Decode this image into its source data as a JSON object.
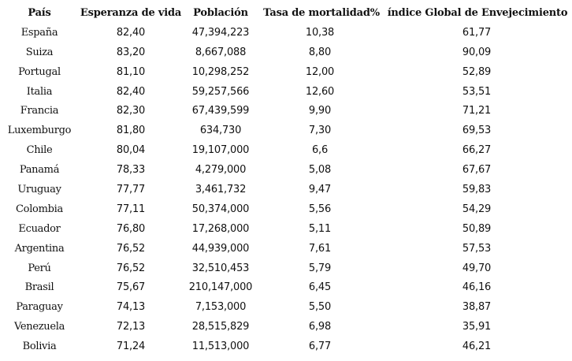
{
  "table": {
    "headers": [
      "País",
      "Esperanza de vida",
      "Población",
      "Tasa de mortalidad%",
      "índice Global de Envejecimiento"
    ],
    "rows": [
      [
        "España",
        "82,40",
        "47,394,223",
        "10,38",
        "61,77"
      ],
      [
        "Suiza",
        "83,20",
        "8,667,088",
        "8,80",
        "90,09"
      ],
      [
        "Portugal",
        "81,10",
        "10,298,252",
        "12,00",
        "52,89"
      ],
      [
        "Italia",
        "82,40",
        "59,257,566",
        "12,60",
        "53,51"
      ],
      [
        "Francia",
        "82,30",
        "67,439,599",
        "9,90",
        "71,21"
      ],
      [
        "Luxemburgo",
        "81,80",
        "634,730",
        "7,30",
        "69,53"
      ],
      [
        "Chile",
        "80,04",
        "19,107,000",
        "6,6",
        "66,27"
      ],
      [
        "Panamá",
        "78,33",
        "4,279,000",
        "5,08",
        "67,67"
      ],
      [
        "Uruguay",
        "77,77",
        "3,461,732",
        "9,47",
        "59,83"
      ],
      [
        "Colombia",
        "77,11",
        "50,374,000",
        "5,56",
        "54,29"
      ],
      [
        "Ecuador",
        "76,80",
        "17,268,000",
        "5,11",
        "50,89"
      ],
      [
        "Argentina",
        "76,52",
        "44,939,000",
        "7,61",
        "57,53"
      ],
      [
        "Perú",
        "76,52",
        "32,510,453",
        "5,79",
        "49,70"
      ],
      [
        "Brasil",
        "75,67",
        "210,147,000",
        "6,45",
        "46,16"
      ],
      [
        "Paraguay",
        "74,13",
        "7,153,000",
        "5,50",
        "38,87"
      ],
      [
        "Venezuela",
        "72,13",
        "28,515,829",
        "6,98",
        "35,91"
      ],
      [
        "Bolivia",
        "71,24",
        "11,513,000",
        "6,77",
        "46,21"
      ]
    ]
  }
}
